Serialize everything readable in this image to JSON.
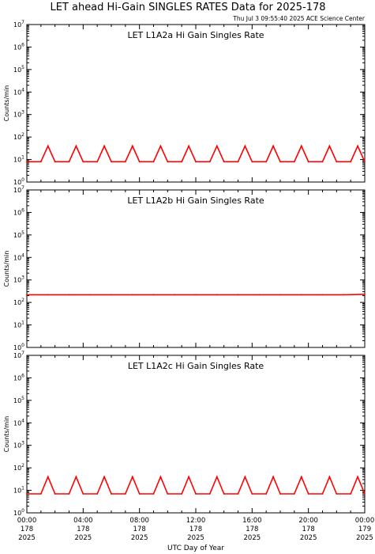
{
  "title": "LET ahead Hi-Gain SINGLES RATES Data for 2025-178",
  "timestamp": "Thu Jul  3 09:55:40 2025 ACE Science Center",
  "xlabel": "UTC Day of Year",
  "colors": {
    "trace": "#ff0000",
    "panel_title": "#0000cc",
    "axes": "#000000"
  },
  "x_ticks": [
    {
      "time": "00:00",
      "day": "178",
      "year": "2025"
    },
    {
      "time": "04:00",
      "day": "178",
      "year": "2025"
    },
    {
      "time": "08:00",
      "day": "178",
      "year": "2025"
    },
    {
      "time": "12:00",
      "day": "178",
      "year": "2025"
    },
    {
      "time": "16:00",
      "day": "178",
      "year": "2025"
    },
    {
      "time": "20:00",
      "day": "178",
      "year": "2025"
    },
    {
      "time": "00:00",
      "day": "179",
      "year": "2025"
    }
  ],
  "chart_data": [
    {
      "type": "line",
      "title": "LET L1A2a Hi Gain Singles Rate",
      "ylabel": "Counts/min",
      "y_scale": "log",
      "ylim": [
        1,
        10000000
      ],
      "xlim_hours": [
        0,
        24
      ],
      "series": [
        {
          "x_hours": [
            0,
            1,
            1.5,
            2,
            3,
            3.5,
            4,
            5,
            5.5,
            6,
            7,
            7.5,
            8,
            9,
            9.5,
            10,
            11,
            11.5,
            12,
            13,
            13.5,
            14,
            15,
            15.5,
            16,
            17,
            17.5,
            18,
            19,
            19.5,
            20,
            21,
            21.5,
            22,
            23,
            23.5,
            24
          ],
          "values": [
            8,
            8,
            40,
            8,
            8,
            40,
            8,
            8,
            40,
            8,
            8,
            40,
            8,
            8,
            40,
            8,
            8,
            40,
            8,
            8,
            40,
            8,
            8,
            40,
            8,
            8,
            40,
            8,
            8,
            40,
            8,
            8,
            40,
            8,
            8,
            40,
            8
          ]
        }
      ]
    },
    {
      "type": "line",
      "title": "LET L1A2b Hi Gain Singles Rate",
      "ylabel": "Counts/min",
      "y_scale": "log",
      "ylim": [
        1,
        10000000
      ],
      "xlim_hours": [
        0,
        24
      ],
      "series": [
        {
          "x_hours": [
            0,
            1.5,
            3,
            4.5,
            6,
            7.5,
            9,
            10.5,
            12,
            13.5,
            15,
            16.5,
            18,
            19.5,
            21,
            22.5,
            24
          ],
          "values": [
            220,
            220,
            220,
            220,
            220,
            220,
            220,
            220,
            220,
            220,
            220,
            220,
            220,
            220,
            220,
            220,
            230
          ]
        }
      ]
    },
    {
      "type": "line",
      "title": "LET L1A2c Hi Gain Singles Rate",
      "ylabel": "Counts/min",
      "y_scale": "log",
      "ylim": [
        1,
        10000000
      ],
      "xlim_hours": [
        0,
        24
      ],
      "series": [
        {
          "x_hours": [
            0,
            1,
            1.5,
            2,
            3,
            3.5,
            4,
            5,
            5.5,
            6,
            7,
            7.5,
            8,
            9,
            9.5,
            10,
            11,
            11.5,
            12,
            13,
            13.5,
            14,
            15,
            15.5,
            16,
            17,
            17.5,
            18,
            19,
            19.5,
            20,
            21,
            21.5,
            22,
            23,
            23.5,
            24
          ],
          "values": [
            7,
            7,
            40,
            7,
            7,
            40,
            7,
            7,
            40,
            7,
            7,
            40,
            7,
            7,
            40,
            7,
            7,
            40,
            7,
            7,
            40,
            7,
            7,
            40,
            7,
            7,
            40,
            7,
            7,
            40,
            7,
            7,
            40,
            7,
            7,
            40,
            7
          ]
        }
      ]
    }
  ]
}
